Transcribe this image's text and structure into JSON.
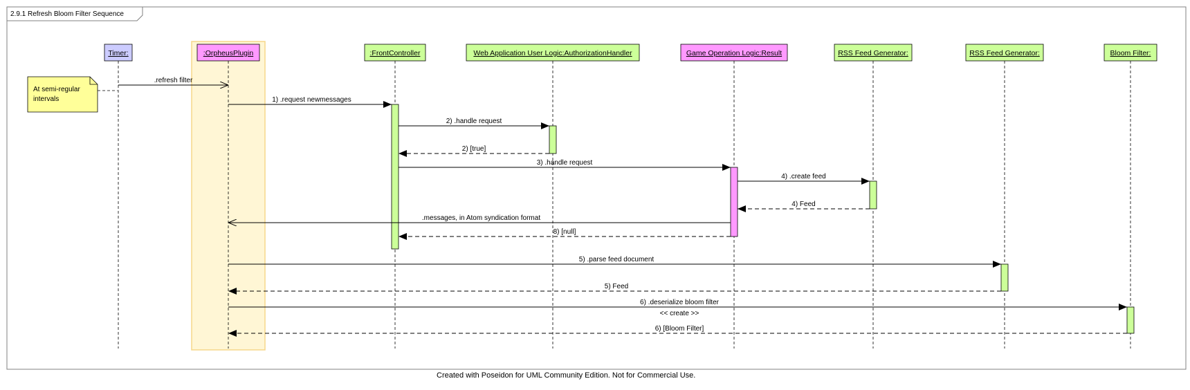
{
  "diagram": {
    "frame_title": "2.9.1 Refresh Bloom Filter Sequence",
    "footer": "Created with Poseidon for UML Community Edition. Not for Commercial Use.",
    "note": {
      "lines": [
        "At semi-regular",
        "intervals"
      ]
    },
    "lifelines": [
      {
        "id": "timer",
        "label": "Timer:",
        "color": "#ccccff"
      },
      {
        "id": "orpheus",
        "label": ":OrpheusPlugin",
        "color": "#ff99ff"
      },
      {
        "id": "front",
        "label": ":FrontController",
        "color": "#ccff99"
      },
      {
        "id": "auth",
        "label": "Web Application User Logic:AuthorizationHandler",
        "color": "#ccff99"
      },
      {
        "id": "result",
        "label": "Game Operation Logic:Result",
        "color": "#ff99ff"
      },
      {
        "id": "rss1",
        "label": "RSS Feed Generator:",
        "color": "#ccff99"
      },
      {
        "id": "rss2",
        "label": "RSS Feed Generator:",
        "color": "#ccff99"
      },
      {
        "id": "bloom",
        "label": "Bloom Filter:",
        "color": "#ccff99"
      }
    ],
    "messages": [
      {
        "from": "timer",
        "to": "orpheus",
        "label": ".refresh filter",
        "kind": "async"
      },
      {
        "from": "orpheus",
        "to": "front",
        "label": "1) .request newmessages",
        "kind": "call"
      },
      {
        "from": "front",
        "to": "auth",
        "label": "2) .handle request",
        "kind": "call"
      },
      {
        "from": "auth",
        "to": "front",
        "label": "2) [true]",
        "kind": "return"
      },
      {
        "from": "front",
        "to": "result",
        "label": "3) .handle request",
        "kind": "call"
      },
      {
        "from": "result",
        "to": "rss1",
        "label": "4) .create feed",
        "kind": "call"
      },
      {
        "from": "rss1",
        "to": "result",
        "label": "4) Feed",
        "kind": "return"
      },
      {
        "from": "result",
        "to": "orpheus",
        "label": ".messages, in Atom syndication format",
        "kind": "async"
      },
      {
        "from": "result",
        "to": "front",
        "label": "8) [null]",
        "kind": "return"
      },
      {
        "from": "orpheus",
        "to": "rss2",
        "label": "5) .parse feed document",
        "kind": "call"
      },
      {
        "from": "rss2",
        "to": "orpheus",
        "label": "5) Feed",
        "kind": "return"
      },
      {
        "from": "orpheus",
        "to": "bloom",
        "label": "6) .deserialize bloom filter",
        "sublabel": "<< create >>",
        "kind": "call"
      },
      {
        "from": "bloom",
        "to": "orpheus",
        "label": "6) [Bloom Filter]",
        "kind": "return"
      }
    ]
  }
}
